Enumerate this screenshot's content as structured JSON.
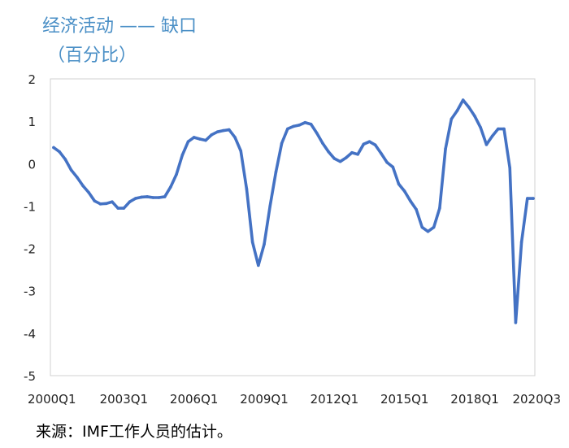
{
  "chart_data": {
    "type": "line",
    "title": "经济活动 —— 缺口",
    "subtitle": "（百分比）",
    "source": "来源：IMF工作人员的估计。",
    "xlabel": "",
    "ylabel": "",
    "ylim": [
      -5,
      2
    ],
    "y_ticks": [
      "2",
      "1",
      "0",
      "-1",
      "-2",
      "-3",
      "-4",
      "-5"
    ],
    "x_tick_labels": [
      {
        "index": 0,
        "label": "2000Q1"
      },
      {
        "index": 12,
        "label": "2003Q1"
      },
      {
        "index": 24,
        "label": "2006Q1"
      },
      {
        "index": 36,
        "label": "2009Q1"
      },
      {
        "index": 48,
        "label": "2012Q1"
      },
      {
        "index": 60,
        "label": "2015Q1"
      },
      {
        "index": 72,
        "label": "2018Q1"
      },
      {
        "index": 82,
        "label": "2020Q3"
      }
    ],
    "grid": false,
    "line_color": "#4472c4",
    "x": [
      "2000Q1",
      "2000Q2",
      "2000Q3",
      "2000Q4",
      "2001Q1",
      "2001Q2",
      "2001Q3",
      "2001Q4",
      "2002Q1",
      "2002Q2",
      "2002Q3",
      "2002Q4",
      "2003Q1",
      "2003Q2",
      "2003Q3",
      "2003Q4",
      "2004Q1",
      "2004Q2",
      "2004Q3",
      "2004Q4",
      "2005Q1",
      "2005Q2",
      "2005Q3",
      "2005Q4",
      "2006Q1",
      "2006Q2",
      "2006Q3",
      "2006Q4",
      "2007Q1",
      "2007Q2",
      "2007Q3",
      "2007Q4",
      "2008Q1",
      "2008Q2",
      "2008Q3",
      "2008Q4",
      "2009Q1",
      "2009Q2",
      "2009Q3",
      "2009Q4",
      "2010Q1",
      "2010Q2",
      "2010Q3",
      "2010Q4",
      "2011Q1",
      "2011Q2",
      "2011Q3",
      "2011Q4",
      "2012Q1",
      "2012Q2",
      "2012Q3",
      "2012Q4",
      "2013Q1",
      "2013Q2",
      "2013Q3",
      "2013Q4",
      "2014Q1",
      "2014Q2",
      "2014Q3",
      "2014Q4",
      "2015Q1",
      "2015Q2",
      "2015Q3",
      "2015Q4",
      "2016Q1",
      "2016Q2",
      "2016Q3",
      "2016Q4",
      "2017Q1",
      "2017Q2",
      "2017Q3",
      "2017Q4",
      "2018Q1",
      "2018Q2",
      "2018Q3",
      "2018Q4",
      "2019Q1",
      "2019Q2",
      "2019Q3",
      "2019Q4",
      "2020Q1",
      "2020Q2",
      "2020Q3"
    ],
    "series": [
      {
        "values": [
          0.38,
          0.28,
          0.1,
          -0.15,
          -0.32,
          -0.52,
          -0.68,
          -0.88,
          -0.95,
          -0.94,
          -0.9,
          -1.05,
          -1.05,
          -0.9,
          -0.82,
          -0.79,
          -0.78,
          -0.8,
          -0.8,
          -0.78,
          -0.55,
          -0.25,
          0.2,
          0.52,
          0.62,
          0.58,
          0.55,
          0.68,
          0.75,
          0.78,
          0.8,
          0.62,
          0.3,
          -0.6,
          -1.85,
          -2.4,
          -1.9,
          -1.0,
          -0.2,
          0.48,
          0.82,
          0.88,
          0.91,
          0.97,
          0.93,
          0.72,
          0.48,
          0.28,
          0.12,
          0.05,
          0.14,
          0.26,
          0.22,
          0.46,
          0.52,
          0.44,
          0.24,
          0.03,
          -0.08,
          -0.48,
          -0.65,
          -0.88,
          -1.08,
          -1.5,
          -1.6,
          -1.5,
          -1.05,
          0.35,
          1.05,
          1.25,
          1.5,
          1.33,
          1.12,
          0.85,
          0.45,
          0.65,
          0.82,
          0.82,
          -0.1,
          -3.75,
          -1.85,
          -0.82,
          -0.82
        ]
      }
    ]
  }
}
